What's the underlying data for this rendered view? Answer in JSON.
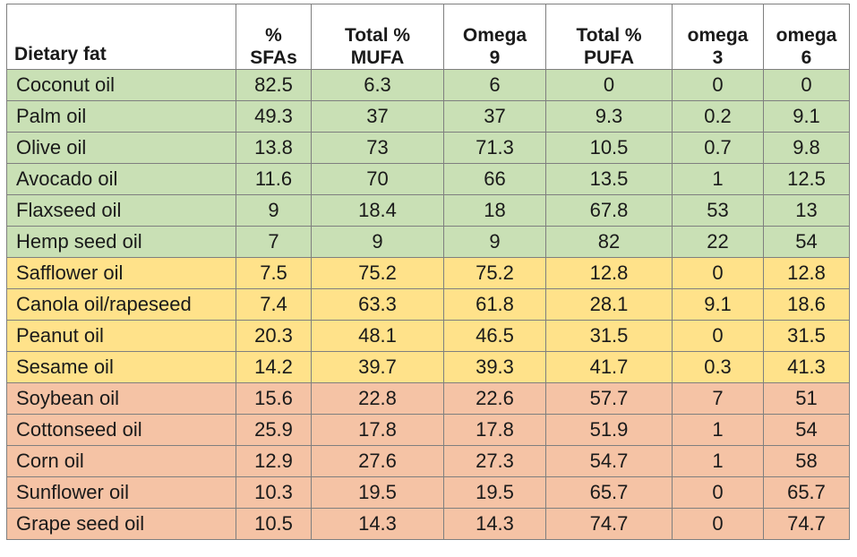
{
  "headers": [
    {
      "line1": "",
      "line2": "Dietary fat"
    },
    {
      "line1": "%",
      "line2": "SFAs"
    },
    {
      "line1": "Total %",
      "line2": "MUFA"
    },
    {
      "line1": "Omega",
      "line2": "9"
    },
    {
      "line1": "Total %",
      "line2": "PUFA"
    },
    {
      "line1": "omega",
      "line2": "3"
    },
    {
      "line1": "omega",
      "line2": "6"
    }
  ],
  "row_colors": {
    "green": "#c9e0b5",
    "yellow": "#ffe28a",
    "red": "#f5c3a5"
  },
  "rows": [
    {
      "group": "green",
      "cells": [
        "Coconut oil",
        "82.5",
        "6.3",
        "6",
        "0",
        "0",
        "0"
      ]
    },
    {
      "group": "green",
      "cells": [
        "Palm oil",
        "49.3",
        "37",
        "37",
        "9.3",
        "0.2",
        "9.1"
      ]
    },
    {
      "group": "green",
      "cells": [
        "Olive oil",
        "13.8",
        "73",
        "71.3",
        "10.5",
        "0.7",
        "9.8"
      ]
    },
    {
      "group": "green",
      "cells": [
        "Avocado oil",
        "11.6",
        "70",
        "66",
        "13.5",
        "1",
        "12.5"
      ]
    },
    {
      "group": "green",
      "cells": [
        "Flaxseed oil",
        "9",
        "18.4",
        "18",
        "67.8",
        "53",
        "13"
      ]
    },
    {
      "group": "green",
      "cells": [
        "Hemp seed oil",
        "7",
        "9",
        "9",
        "82",
        "22",
        "54"
      ]
    },
    {
      "group": "yellow",
      "cells": [
        "Safflower oil",
        "7.5",
        "75.2",
        "75.2",
        "12.8",
        "0",
        "12.8"
      ]
    },
    {
      "group": "yellow",
      "cells": [
        "Canola oil/rapeseed",
        "7.4",
        "63.3",
        "61.8",
        "28.1",
        "9.1",
        "18.6"
      ]
    },
    {
      "group": "yellow",
      "cells": [
        "Peanut oil",
        "20.3",
        "48.1",
        "46.5",
        "31.5",
        "0",
        "31.5"
      ]
    },
    {
      "group": "yellow",
      "cells": [
        "Sesame oil",
        "14.2",
        "39.7",
        "39.3",
        "41.7",
        "0.3",
        "41.3"
      ]
    },
    {
      "group": "red",
      "cells": [
        "Soybean oil",
        "15.6",
        "22.8",
        "22.6",
        "57.7",
        "7",
        "51"
      ]
    },
    {
      "group": "red",
      "cells": [
        "Cottonseed oil",
        "25.9",
        "17.8",
        "17.8",
        "51.9",
        "1",
        "54"
      ]
    },
    {
      "group": "red",
      "cells": [
        "Corn oil",
        "12.9",
        "27.6",
        "27.3",
        "54.7",
        "1",
        "58"
      ]
    },
    {
      "group": "red",
      "cells": [
        "Sunflower oil",
        "10.3",
        "19.5",
        "19.5",
        "65.7",
        "0",
        "65.7"
      ]
    },
    {
      "group": "red",
      "cells": [
        "Grape seed oil",
        "10.5",
        "14.3",
        "14.3",
        "74.7",
        "0",
        "74.7"
      ]
    }
  ]
}
